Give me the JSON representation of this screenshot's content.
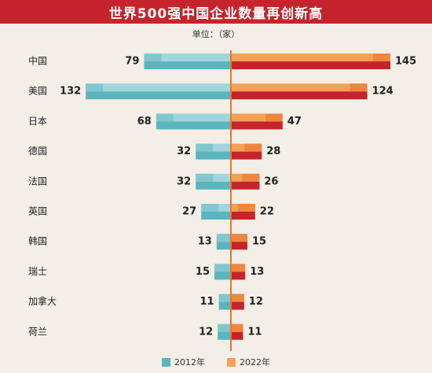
{
  "header": {
    "title": "世界500强中国企业数量再创新高",
    "unit": "单位：（家）"
  },
  "colors": {
    "series2012_top": "#9ed6dc",
    "series2012_front": "#5bb5be",
    "series2022_top": "#f4a157",
    "series2022_front": "#c5242c",
    "axis": "#e8762c"
  },
  "chart_data": {
    "type": "bar",
    "orientation": "diverging-horizontal",
    "categories": [
      "中国",
      "美国",
      "日本",
      "德国",
      "法国",
      "英国",
      "韩国",
      "瑞士",
      "加拿大",
      "荷兰"
    ],
    "series": [
      {
        "name": "2012年",
        "values": [
          79,
          132,
          68,
          32,
          32,
          27,
          13,
          15,
          11,
          12
        ]
      },
      {
        "name": "2022年",
        "values": [
          145,
          124,
          47,
          28,
          26,
          22,
          15,
          13,
          12,
          11
        ]
      }
    ],
    "legend_position": "bottom"
  }
}
